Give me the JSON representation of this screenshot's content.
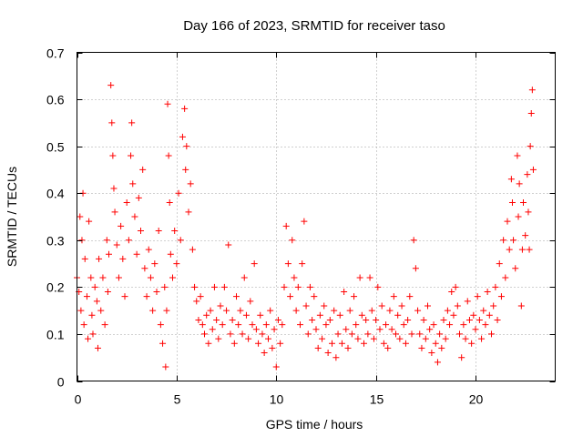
{
  "chart_data": {
    "type": "scatter",
    "title": "Day 166 of 2023, SRMTID for receiver taso",
    "xlabel": "GPS time / hours",
    "ylabel": "SRMTID / TECUs",
    "xlim": [
      0,
      24
    ],
    "ylim": [
      0,
      0.7
    ],
    "xticks": [
      0,
      5,
      10,
      15,
      20
    ],
    "xtick_labels": [
      "0",
      "5",
      "10",
      "15",
      "20"
    ],
    "yticks": [
      0,
      0.1,
      0.2,
      0.3,
      0.4,
      0.5,
      0.6,
      0.7
    ],
    "ytick_labels": [
      "0",
      "0.1",
      "0.2",
      "0.3",
      "0.4",
      "0.5",
      "0.6",
      "0.7"
    ],
    "grid": true,
    "marker": "+",
    "color": "#ff0000",
    "series": [
      {
        "name": "SRMTID",
        "points": [
          [
            0.0,
            0.22
          ],
          [
            0.1,
            0.19
          ],
          [
            0.15,
            0.35
          ],
          [
            0.2,
            0.15
          ],
          [
            0.25,
            0.3
          ],
          [
            0.3,
            0.4
          ],
          [
            0.35,
            0.12
          ],
          [
            0.4,
            0.26
          ],
          [
            0.5,
            0.18
          ],
          [
            0.55,
            0.09
          ],
          [
            0.6,
            0.34
          ],
          [
            0.7,
            0.22
          ],
          [
            0.75,
            0.14
          ],
          [
            0.8,
            0.1
          ],
          [
            0.9,
            0.2
          ],
          [
            1.0,
            0.17
          ],
          [
            1.05,
            0.07
          ],
          [
            1.1,
            0.26
          ],
          [
            1.2,
            0.15
          ],
          [
            1.3,
            0.22
          ],
          [
            1.4,
            0.12
          ],
          [
            1.5,
            0.3
          ],
          [
            1.55,
            0.19
          ],
          [
            1.6,
            0.27
          ],
          [
            1.7,
            0.63
          ],
          [
            1.75,
            0.55
          ],
          [
            1.8,
            0.48
          ],
          [
            1.85,
            0.41
          ],
          [
            1.9,
            0.36
          ],
          [
            2.0,
            0.29
          ],
          [
            2.1,
            0.22
          ],
          [
            2.2,
            0.33
          ],
          [
            2.3,
            0.26
          ],
          [
            2.4,
            0.18
          ],
          [
            2.5,
            0.38
          ],
          [
            2.6,
            0.3
          ],
          [
            2.7,
            0.48
          ],
          [
            2.75,
            0.55
          ],
          [
            2.8,
            0.42
          ],
          [
            2.9,
            0.35
          ],
          [
            3.0,
            0.27
          ],
          [
            3.1,
            0.39
          ],
          [
            3.2,
            0.32
          ],
          [
            3.3,
            0.45
          ],
          [
            3.4,
            0.24
          ],
          [
            3.5,
            0.18
          ],
          [
            3.6,
            0.28
          ],
          [
            3.7,
            0.22
          ],
          [
            3.8,
            0.15
          ],
          [
            3.9,
            0.25
          ],
          [
            4.0,
            0.19
          ],
          [
            4.1,
            0.32
          ],
          [
            4.2,
            0.12
          ],
          [
            4.3,
            0.08
          ],
          [
            4.4,
            0.2
          ],
          [
            4.45,
            0.03
          ],
          [
            4.5,
            0.15
          ],
          [
            4.55,
            0.59
          ],
          [
            4.6,
            0.48
          ],
          [
            4.65,
            0.38
          ],
          [
            4.7,
            0.27
          ],
          [
            4.8,
            0.22
          ],
          [
            4.9,
            0.32
          ],
          [
            5.0,
            0.25
          ],
          [
            5.1,
            0.4
          ],
          [
            5.2,
            0.3
          ],
          [
            5.3,
            0.52
          ],
          [
            5.4,
            0.58
          ],
          [
            5.45,
            0.45
          ],
          [
            5.5,
            0.5
          ],
          [
            5.6,
            0.36
          ],
          [
            5.7,
            0.42
          ],
          [
            5.8,
            0.28
          ],
          [
            5.9,
            0.2
          ],
          [
            6.0,
            0.17
          ],
          [
            6.1,
            0.13
          ],
          [
            6.2,
            0.18
          ],
          [
            6.3,
            0.12
          ],
          [
            6.4,
            0.1
          ],
          [
            6.5,
            0.14
          ],
          [
            6.6,
            0.08
          ],
          [
            6.7,
            0.15
          ],
          [
            6.8,
            0.11
          ],
          [
            6.9,
            0.2
          ],
          [
            7.0,
            0.13
          ],
          [
            7.1,
            0.09
          ],
          [
            7.2,
            0.16
          ],
          [
            7.3,
            0.12
          ],
          [
            7.4,
            0.2
          ],
          [
            7.5,
            0.15
          ],
          [
            7.6,
            0.29
          ],
          [
            7.7,
            0.1
          ],
          [
            7.8,
            0.13
          ],
          [
            7.9,
            0.08
          ],
          [
            8.0,
            0.18
          ],
          [
            8.1,
            0.12
          ],
          [
            8.2,
            0.15
          ],
          [
            8.3,
            0.1
          ],
          [
            8.4,
            0.22
          ],
          [
            8.5,
            0.14
          ],
          [
            8.6,
            0.09
          ],
          [
            8.7,
            0.17
          ],
          [
            8.8,
            0.12
          ],
          [
            8.9,
            0.25
          ],
          [
            9.0,
            0.11
          ],
          [
            9.1,
            0.08
          ],
          [
            9.2,
            0.14
          ],
          [
            9.3,
            0.1
          ],
          [
            9.4,
            0.06
          ],
          [
            9.5,
            0.12
          ],
          [
            9.6,
            0.09
          ],
          [
            9.7,
            0.15
          ],
          [
            9.8,
            0.07
          ],
          [
            9.9,
            0.11
          ],
          [
            10.0,
            0.03
          ],
          [
            10.1,
            0.13
          ],
          [
            10.2,
            0.08
          ],
          [
            10.3,
            0.12
          ],
          [
            10.4,
            0.2
          ],
          [
            10.5,
            0.33
          ],
          [
            10.6,
            0.25
          ],
          [
            10.7,
            0.18
          ],
          [
            10.8,
            0.3
          ],
          [
            10.9,
            0.22
          ],
          [
            11.0,
            0.15
          ],
          [
            11.1,
            0.2
          ],
          [
            11.2,
            0.12
          ],
          [
            11.3,
            0.25
          ],
          [
            11.4,
            0.34
          ],
          [
            11.5,
            0.16
          ],
          [
            11.6,
            0.1
          ],
          [
            11.7,
            0.2
          ],
          [
            11.8,
            0.13
          ],
          [
            11.9,
            0.18
          ],
          [
            12.0,
            0.11
          ],
          [
            12.1,
            0.07
          ],
          [
            12.2,
            0.14
          ],
          [
            12.3,
            0.09
          ],
          [
            12.4,
            0.16
          ],
          [
            12.5,
            0.12
          ],
          [
            12.6,
            0.06
          ],
          [
            12.7,
            0.13
          ],
          [
            12.8,
            0.08
          ],
          [
            12.9,
            0.15
          ],
          [
            13.0,
            0.05
          ],
          [
            13.1,
            0.1
          ],
          [
            13.2,
            0.14
          ],
          [
            13.3,
            0.08
          ],
          [
            13.4,
            0.19
          ],
          [
            13.5,
            0.11
          ],
          [
            13.6,
            0.07
          ],
          [
            13.7,
            0.15
          ],
          [
            13.8,
            0.1
          ],
          [
            13.9,
            0.18
          ],
          [
            14.0,
            0.12
          ],
          [
            14.1,
            0.09
          ],
          [
            14.2,
            0.22
          ],
          [
            14.3,
            0.14
          ],
          [
            14.4,
            0.08
          ],
          [
            14.5,
            0.13
          ],
          [
            14.6,
            0.1
          ],
          [
            14.7,
            0.22
          ],
          [
            14.8,
            0.15
          ],
          [
            14.9,
            0.09
          ],
          [
            15.0,
            0.13
          ],
          [
            15.1,
            0.2
          ],
          [
            15.2,
            0.11
          ],
          [
            15.3,
            0.16
          ],
          [
            15.4,
            0.08
          ],
          [
            15.5,
            0.12
          ],
          [
            15.6,
            0.07
          ],
          [
            15.7,
            0.15
          ],
          [
            15.8,
            0.11
          ],
          [
            15.9,
            0.18
          ],
          [
            16.0,
            0.1
          ],
          [
            16.1,
            0.14
          ],
          [
            16.2,
            0.09
          ],
          [
            16.3,
            0.16
          ],
          [
            16.4,
            0.12
          ],
          [
            16.5,
            0.08
          ],
          [
            16.6,
            0.13
          ],
          [
            16.7,
            0.18
          ],
          [
            16.8,
            0.1
          ],
          [
            16.9,
            0.3
          ],
          [
            17.0,
            0.24
          ],
          [
            17.1,
            0.15
          ],
          [
            17.2,
            0.1
          ],
          [
            17.3,
            0.07
          ],
          [
            17.4,
            0.13
          ],
          [
            17.5,
            0.09
          ],
          [
            17.6,
            0.16
          ],
          [
            17.7,
            0.11
          ],
          [
            17.8,
            0.06
          ],
          [
            17.9,
            0.12
          ],
          [
            18.0,
            0.08
          ],
          [
            18.1,
            0.04
          ],
          [
            18.2,
            0.1
          ],
          [
            18.3,
            0.07
          ],
          [
            18.4,
            0.13
          ],
          [
            18.5,
            0.09
          ],
          [
            18.6,
            0.15
          ],
          [
            18.7,
            0.12
          ],
          [
            18.8,
            0.19
          ],
          [
            18.9,
            0.14
          ],
          [
            19.0,
            0.2
          ],
          [
            19.1,
            0.16
          ],
          [
            19.2,
            0.1
          ],
          [
            19.3,
            0.05
          ],
          [
            19.4,
            0.12
          ],
          [
            19.5,
            0.09
          ],
          [
            19.6,
            0.17
          ],
          [
            19.7,
            0.13
          ],
          [
            19.8,
            0.08
          ],
          [
            19.9,
            0.14
          ],
          [
            20.0,
            0.11
          ],
          [
            20.1,
            0.18
          ],
          [
            20.2,
            0.13
          ],
          [
            20.3,
            0.09
          ],
          [
            20.4,
            0.15
          ],
          [
            20.5,
            0.12
          ],
          [
            20.6,
            0.19
          ],
          [
            20.7,
            0.14
          ],
          [
            20.8,
            0.1
          ],
          [
            20.9,
            0.16
          ],
          [
            21.0,
            0.2
          ],
          [
            21.1,
            0.13
          ],
          [
            21.2,
            0.25
          ],
          [
            21.3,
            0.18
          ],
          [
            21.4,
            0.3
          ],
          [
            21.5,
            0.22
          ],
          [
            21.6,
            0.34
          ],
          [
            21.7,
            0.28
          ],
          [
            21.8,
            0.43
          ],
          [
            21.85,
            0.38
          ],
          [
            21.9,
            0.3
          ],
          [
            22.0,
            0.24
          ],
          [
            22.1,
            0.48
          ],
          [
            22.15,
            0.35
          ],
          [
            22.2,
            0.42
          ],
          [
            22.3,
            0.16
          ],
          [
            22.35,
            0.28
          ],
          [
            22.4,
            0.38
          ],
          [
            22.5,
            0.31
          ],
          [
            22.6,
            0.44
          ],
          [
            22.65,
            0.36
          ],
          [
            22.7,
            0.28
          ],
          [
            22.75,
            0.5
          ],
          [
            22.8,
            0.57
          ],
          [
            22.85,
            0.62
          ],
          [
            22.9,
            0.45
          ]
        ]
      }
    ]
  }
}
